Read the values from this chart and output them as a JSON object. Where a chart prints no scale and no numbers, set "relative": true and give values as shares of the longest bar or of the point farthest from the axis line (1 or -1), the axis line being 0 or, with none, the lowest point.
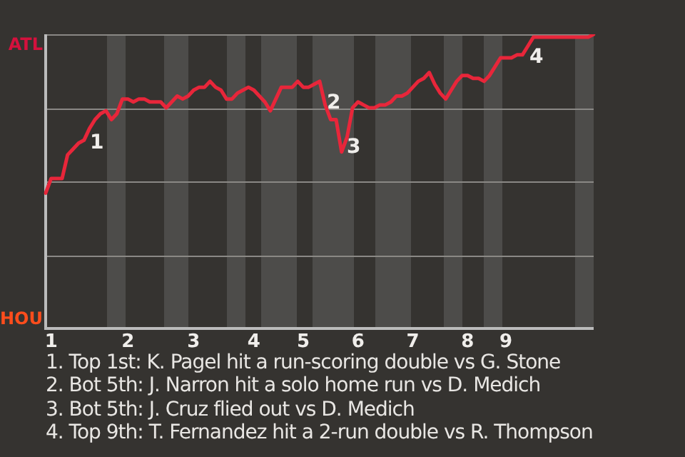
{
  "chart_data": {
    "type": "line",
    "relative": true,
    "grid": "y",
    "legend": false,
    "marker": "none",
    "line_style": "solid",
    "categories": [
      null,
      "1",
      null,
      null,
      null,
      null,
      null,
      null,
      null,
      null,
      null,
      null,
      null,
      null,
      null,
      "2",
      null,
      null,
      null,
      null,
      null,
      null,
      null,
      null,
      null,
      null,
      null,
      "3",
      null,
      null,
      null,
      null,
      null,
      null,
      null,
      null,
      null,
      null,
      "4",
      null,
      null,
      null,
      null,
      null,
      null,
      null,
      null,
      "5",
      null,
      null,
      null,
      null,
      null,
      null,
      null,
      null,
      null,
      "6",
      null,
      null,
      null,
      null,
      null,
      null,
      null,
      null,
      null,
      "7",
      null,
      null,
      null,
      null,
      null,
      null,
      null,
      null,
      null,
      "8",
      null,
      null,
      null,
      null,
      null,
      null,
      "9",
      null,
      null,
      null,
      null,
      null,
      null,
      null,
      null,
      null,
      null,
      null,
      null,
      null,
      null,
      null,
      null
    ],
    "series": [
      {
        "color": "#e8263a",
        "values": [
          0.46,
          0.51,
          0.51,
          0.51,
          0.59,
          0.61,
          0.63,
          0.64,
          0.68,
          0.71,
          0.73,
          0.74,
          0.71,
          0.73,
          0.78,
          0.78,
          0.77,
          0.78,
          0.78,
          0.77,
          0.77,
          0.77,
          0.75,
          0.77,
          0.79,
          0.78,
          0.79,
          0.81,
          0.82,
          0.82,
          0.84,
          0.82,
          0.81,
          0.78,
          0.78,
          0.8,
          0.81,
          0.82,
          0.81,
          0.79,
          0.77,
          0.74,
          0.78,
          0.82,
          0.82,
          0.82,
          0.84,
          0.82,
          0.82,
          0.83,
          0.84,
          0.76,
          0.71,
          0.71,
          0.6,
          0.65,
          0.75,
          0.77,
          0.76,
          0.75,
          0.75,
          0.76,
          0.76,
          0.77,
          0.79,
          0.79,
          0.8,
          0.82,
          0.84,
          0.85,
          0.87,
          0.83,
          0.8,
          0.78,
          0.81,
          0.84,
          0.86,
          0.86,
          0.85,
          0.85,
          0.84,
          0.86,
          0.89,
          0.92,
          0.92,
          0.92,
          0.93,
          0.93,
          0.96,
          0.99,
          0.99,
          0.99,
          0.99,
          0.99,
          0.99,
          0.99,
          0.99,
          0.99,
          0.99,
          0.99,
          1
        ]
      }
    ],
    "annotations": [
      "ATL",
      "HOU",
      "1",
      "2",
      "3",
      "4",
      "1. Top 1st: K. Pagel hit a run-scoring double vs G. Stone",
      "2. Bot 5th: J. Narron hit a solo home run vs D. Medich",
      "3. Bot 5th: J. Cruz flied out vs D. Medich",
      "4. Top 9th: T. Fernandez hit a 2-run double vs R. Thompson"
    ]
  }
}
